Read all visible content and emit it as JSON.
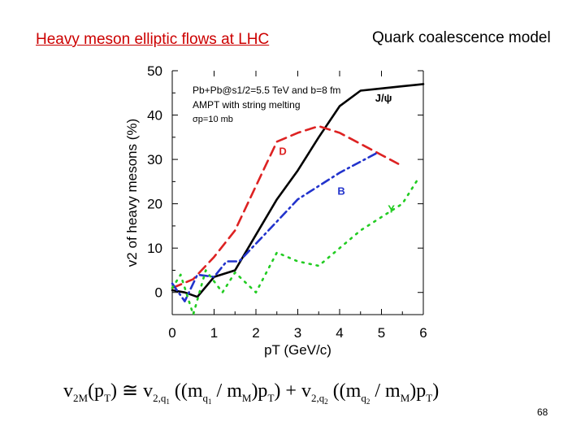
{
  "slide": {
    "title_left": "Heavy meson elliptic flows at LHC",
    "title_right": "Quark coalescence model",
    "page_number": "68",
    "colors": {
      "title_left": "#cc0000"
    }
  },
  "formula": {
    "v": "v",
    "two_m": "2M",
    "pt": "(p",
    "T": "T",
    "close": ")",
    "approx": " ≅ ",
    "two_q": "2,q",
    "one": "1",
    "two": "2",
    "open_mq": " ((m",
    "q": "q",
    "slash_m": " / m",
    "M": "M",
    "close_pt": ")p",
    "tail": ")",
    "plus": " + "
  },
  "chart_data": {
    "type": "line",
    "title": "",
    "xlabel": "pT (GeV/c)",
    "ylabel": "v2 of heavy mesons (%)",
    "xlim": [
      0,
      6
    ],
    "ylim": [
      -5,
      50
    ],
    "xticks": [
      0,
      1,
      2,
      3,
      4,
      5,
      6
    ],
    "yticks": [
      0,
      10,
      20,
      30,
      40,
      50
    ],
    "annotations": [
      "Pb+Pb@s1/2=5.5 TeV and b=8 fm",
      "AMPT with string melting",
      "σp=10 mb"
    ],
    "series": [
      {
        "name": "J/ψ",
        "style": "solid",
        "color": "#000000",
        "x": [
          0.0,
          0.3,
          0.6,
          1.0,
          1.5,
          2.0,
          2.5,
          3.0,
          3.5,
          4.0,
          4.5,
          5.0,
          5.5,
          6.0
        ],
        "y": [
          0.5,
          0.0,
          -1.0,
          3.5,
          5.0,
          13.0,
          21.0,
          27.5,
          35.0,
          42.0,
          45.5,
          46.0,
          46.5,
          47.0
        ]
      },
      {
        "name": "D",
        "style": "dashed",
        "color": "#dd2222",
        "x": [
          0.0,
          0.5,
          1.0,
          1.5,
          2.0,
          2.5,
          3.0,
          3.5,
          4.0,
          4.5,
          5.0,
          5.4
        ],
        "y": [
          1.0,
          3.0,
          8.0,
          14.0,
          24.0,
          34.0,
          36.0,
          37.5,
          36.0,
          33.5,
          31.0,
          29.0
        ]
      },
      {
        "name": "B",
        "style": "dashdot",
        "color": "#2233cc",
        "x": [
          0.0,
          0.3,
          0.6,
          1.0,
          1.3,
          1.6,
          2.0,
          2.5,
          3.0,
          3.5,
          4.0,
          4.5,
          4.9
        ],
        "y": [
          2.0,
          -2.0,
          4.0,
          3.5,
          7.0,
          7.0,
          11.0,
          16.0,
          21.0,
          24.0,
          27.0,
          29.5,
          31.5
        ]
      },
      {
        "name": "Υ",
        "style": "dotted",
        "color": "#22cc22",
        "x": [
          0.0,
          0.2,
          0.5,
          0.8,
          1.2,
          1.5,
          2.0,
          2.5,
          3.0,
          3.5,
          4.0,
          4.5,
          5.0,
          5.5,
          5.9
        ],
        "y": [
          1.0,
          4.0,
          -5.0,
          5.0,
          0.0,
          4.5,
          0.0,
          9.0,
          7.0,
          6.0,
          10.0,
          14.0,
          17.0,
          20.0,
          26.0
        ]
      }
    ],
    "series_labels": [
      {
        "series": "J/ψ",
        "text": "J/ψ",
        "x": 4.85,
        "y": 43.0
      },
      {
        "series": "D",
        "text": "D",
        "x": 2.55,
        "y": 31.0
      },
      {
        "series": "B",
        "text": "B",
        "x": 3.95,
        "y": 22.0
      },
      {
        "series": "Υ",
        "text": "Υ",
        "x": 5.15,
        "y": 18.0
      }
    ]
  }
}
